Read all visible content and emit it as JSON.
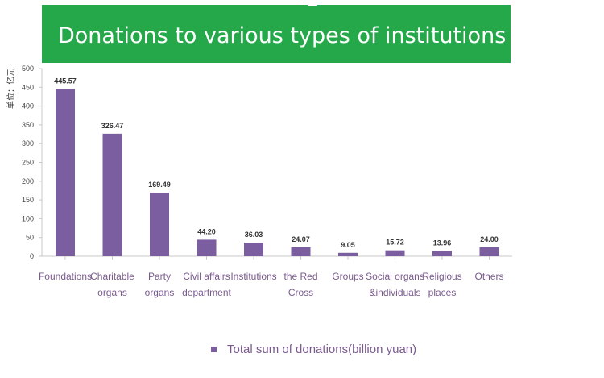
{
  "banner": {
    "title": "Donations to various types of institutions",
    "background": "#25a84a"
  },
  "chart_data": {
    "type": "bar",
    "title": "Donations to various types of institutions",
    "ylabel": "单位：亿元",
    "xlabel": "",
    "ylim": [
      0,
      500
    ],
    "yticks": [
      0,
      50,
      100,
      150,
      200,
      250,
      300,
      350,
      400,
      450,
      500
    ],
    "grid": false,
    "legend_position": "bottom",
    "categories": [
      [
        "Foundations"
      ],
      [
        "Charitable",
        "organs"
      ],
      [
        "Party",
        "organs"
      ],
      [
        "Civil affairs",
        "department"
      ],
      [
        "Institutions"
      ],
      [
        "the Red",
        "Cross"
      ],
      [
        "Groups"
      ],
      [
        "Social organs",
        "&individuals"
      ],
      [
        "Religious",
        "places"
      ],
      [
        "Others"
      ]
    ],
    "data_labels": [
      "445.57",
      "326.47",
      "169.49",
      "44.20",
      "36.03",
      "24.07",
      "9.05",
      "15.72",
      "13.96",
      "24.00"
    ],
    "series": [
      {
        "name": "Total sum of donations(billion yuan)",
        "color": "#7a5ea0",
        "values": [
          445.57,
          326.47,
          169.49,
          44.2,
          36.03,
          24.07,
          9.05,
          15.72,
          13.96,
          24.0
        ]
      }
    ],
    "colors": {
      "bar": "#7a5ea0",
      "category_text": "#7a5a8e",
      "axis": "#c8c8c8",
      "tick_text": "#444444"
    }
  }
}
